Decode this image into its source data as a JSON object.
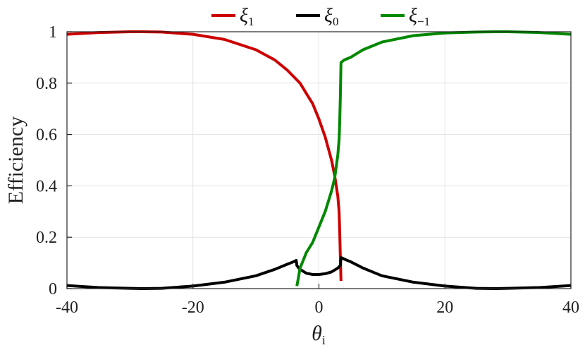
{
  "chart_data": {
    "type": "line",
    "xlabel": "θi",
    "xlabel_main": "θ",
    "xlabel_sub": "i",
    "ylabel": "Efficiency",
    "xlim": [
      -40,
      40
    ],
    "ylim": [
      0,
      1
    ],
    "xticks": [
      -40,
      -20,
      0,
      20,
      40
    ],
    "xtick_labels": [
      "-40",
      "-20",
      "0",
      "20",
      "40"
    ],
    "yticks": [
      0,
      0.2,
      0.4,
      0.6,
      0.8,
      1
    ],
    "ytick_labels": [
      "0",
      "0.2",
      "0.4",
      "0.6",
      "0.8",
      "1"
    ],
    "grid": true,
    "legend_position": "top-center",
    "series": [
      {
        "name": "ξ1",
        "name_main": "ξ",
        "name_sub": "1",
        "color": "#cc0000",
        "x": [
          -40,
          -35,
          -30,
          -28,
          -25,
          -20,
          -15,
          -10,
          -7,
          -5,
          -3,
          -2,
          -1,
          0,
          1,
          2,
          2.5,
          3,
          3.2,
          3.3,
          3.4,
          3.5
        ],
        "y": [
          0.99,
          0.997,
          1.0,
          1.0,
          0.999,
          0.99,
          0.97,
          0.93,
          0.89,
          0.85,
          0.8,
          0.76,
          0.72,
          0.66,
          0.59,
          0.5,
          0.44,
          0.36,
          0.3,
          0.22,
          0.12,
          0.03
        ]
      },
      {
        "name": "ξ0",
        "name_main": "ξ",
        "name_sub": "0",
        "color": "#000000",
        "x": [
          -40,
          -35,
          -30,
          -28,
          -25,
          -20,
          -15,
          -10,
          -7,
          -5,
          -4,
          -3.6,
          -3.5,
          -3.2,
          -3,
          -2,
          -1,
          0,
          1,
          2,
          3,
          3.4,
          3.5,
          3.6,
          4,
          5,
          7,
          10,
          15,
          20,
          25,
          28,
          30,
          35,
          40
        ],
        "y": [
          0.012,
          0.004,
          0.001,
          0.0,
          0.001,
          0.01,
          0.025,
          0.05,
          0.075,
          0.095,
          0.105,
          0.11,
          0.09,
          0.08,
          0.075,
          0.06,
          0.055,
          0.055,
          0.058,
          0.065,
          0.08,
          0.09,
          0.12,
          0.12,
          0.115,
          0.105,
          0.08,
          0.05,
          0.025,
          0.01,
          0.001,
          0.0,
          0.001,
          0.004,
          0.012
        ]
      },
      {
        "name": "ξ−1",
        "name_main": "ξ",
        "name_sub": "−1",
        "color": "#008800",
        "x": [
          -3.5,
          -3.2,
          -3,
          -2.5,
          -2,
          -1,
          0,
          1,
          2,
          2.5,
          3,
          3.2,
          3.3,
          3.4,
          3.5,
          4,
          5,
          7,
          10,
          15,
          20,
          25,
          28,
          30,
          35,
          40
        ],
        "y": [
          0.01,
          0.05,
          0.08,
          0.11,
          0.14,
          0.18,
          0.24,
          0.3,
          0.38,
          0.43,
          0.52,
          0.58,
          0.65,
          0.75,
          0.88,
          0.89,
          0.9,
          0.93,
          0.96,
          0.985,
          0.995,
          0.999,
          1.0,
          1.0,
          0.997,
          0.99
        ]
      }
    ]
  }
}
